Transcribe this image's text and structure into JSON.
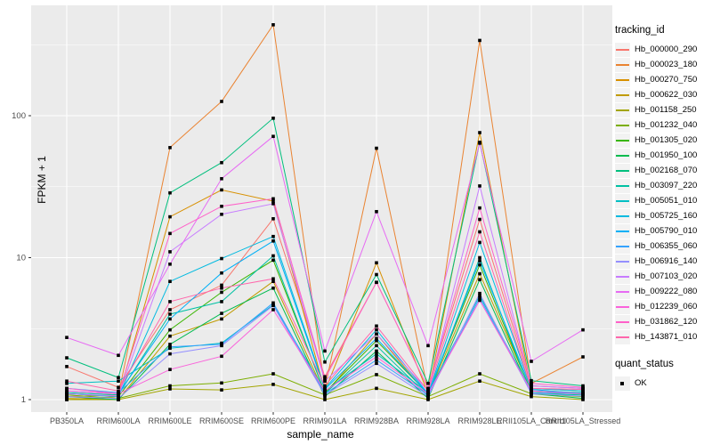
{
  "chart_data": {
    "type": "line",
    "title": "",
    "xlabel": "sample_name",
    "ylabel": "FPKM + 1",
    "y_scale": "log10",
    "y_ticks": [
      1,
      10,
      100
    ],
    "y_minor_ticks": [
      3.162,
      31.62,
      316.2
    ],
    "ylim_log": [
      -0.09,
      2.78
    ],
    "grid": "on",
    "panel_bg": "#EBEBEB",
    "grid_color": "#FFFFFF",
    "point_shape": "black-square",
    "legend_position": "right",
    "categories": [
      "PB350LA",
      "RRIM600LA",
      "RRIM600LE",
      "RRIM600SE",
      "RRIM600PE",
      "RRIM901LA",
      "RRIM928BA",
      "RRIM928LA",
      "RRIM928LE",
      "RRII105LA_Control",
      "RRII105LA_Stressed"
    ],
    "series": [
      {
        "name": "Hb_000000_290",
        "color": "#F8766D",
        "values": [
          1.71,
          1.22,
          4.3,
          6.4,
          18.8,
          1.45,
          6.7,
          1.2,
          18.6,
          1.25,
          1.2
        ]
      },
      {
        "name": "Hb_000023_180",
        "color": "#EA8331",
        "values": [
          1.05,
          1.08,
          59.6,
          126,
          437,
          1.2,
          59,
          1.15,
          339,
          1.3,
          2.0
        ]
      },
      {
        "name": "Hb_000270_750",
        "color": "#D89000",
        "values": [
          1.0,
          1.05,
          19.4,
          30,
          25,
          1.15,
          9.2,
          1.1,
          76,
          1.2,
          1.15
        ]
      },
      {
        "name": "Hb_000622_030",
        "color": "#C09B00",
        "values": [
          1.02,
          1.0,
          2.8,
          3.7,
          6.8,
          1.1,
          2.9,
          1.08,
          7.7,
          1.15,
          1.1
        ]
      },
      {
        "name": "Hb_001158_250",
        "color": "#A3A500",
        "values": [
          1.0,
          1.0,
          1.19,
          1.17,
          1.28,
          1.0,
          1.2,
          1.0,
          1.35,
          1.05,
          1.0
        ]
      },
      {
        "name": "Hb_001232_040",
        "color": "#7CAE00",
        "values": [
          1.08,
          1.02,
          1.25,
          1.31,
          1.52,
          1.08,
          1.5,
          1.05,
          1.52,
          1.1,
          1.05
        ]
      },
      {
        "name": "Hb_001305_020",
        "color": "#39B600",
        "values": [
          1.1,
          1.05,
          3.1,
          5.7,
          9.6,
          1.12,
          2.6,
          1.1,
          8.9,
          1.12,
          1.1
        ]
      },
      {
        "name": "Hb_001950_100",
        "color": "#00BB4E",
        "values": [
          1.05,
          1.0,
          2.45,
          4.05,
          6.1,
          1.05,
          2.2,
          1.02,
          7.0,
          1.1,
          1.02
        ]
      },
      {
        "name": "Hb_002168_070",
        "color": "#00BF7D",
        "values": [
          1.97,
          1.43,
          28.6,
          46.7,
          96,
          1.84,
          7.6,
          1.3,
          65,
          1.36,
          1.25
        ]
      },
      {
        "name": "Hb_003097_220",
        "color": "#00C1A3",
        "values": [
          1.12,
          1.08,
          4.0,
          4.9,
          10.3,
          1.1,
          2.4,
          1.06,
          10.0,
          1.1,
          1.08
        ]
      },
      {
        "name": "Hb_005051_010",
        "color": "#00BFC4",
        "values": [
          1.3,
          1.35,
          2.3,
          2.5,
          4.65,
          1.15,
          2.1,
          1.12,
          5.4,
          1.15,
          1.12
        ]
      },
      {
        "name": "Hb_005725_160",
        "color": "#00BAE0",
        "values": [
          1.1,
          1.05,
          6.8,
          9.85,
          14.1,
          1.2,
          3.1,
          1.1,
          12.8,
          1.2,
          1.15
        ]
      },
      {
        "name": "Hb_005790_010",
        "color": "#00B0F6",
        "values": [
          1.15,
          1.1,
          3.7,
          7.8,
          13.1,
          1.18,
          2.7,
          1.1,
          9.5,
          1.18,
          1.1
        ]
      },
      {
        "name": "Hb_006355_060",
        "color": "#35A2FF",
        "values": [
          1.2,
          1.12,
          2.35,
          2.45,
          4.8,
          1.1,
          1.9,
          1.08,
          5.2,
          1.12,
          1.1
        ]
      },
      {
        "name": "Hb_006916_140",
        "color": "#9590FF",
        "values": [
          1.05,
          1.02,
          2.1,
          2.4,
          4.6,
          1.08,
          1.8,
          1.05,
          5.6,
          1.1,
          1.06
        ]
      },
      {
        "name": "Hb_007103_020",
        "color": "#C77CFF",
        "values": [
          1.1,
          1.06,
          11.0,
          20.2,
          24,
          1.35,
          2.9,
          1.15,
          32,
          1.25,
          1.2
        ]
      },
      {
        "name": "Hb_009222_080",
        "color": "#E76BF3",
        "values": [
          2.74,
          2.05,
          9.0,
          36,
          71.5,
          2.2,
          21.1,
          2.4,
          64,
          1.86,
          3.1
        ]
      },
      {
        "name": "Hb_012239_060",
        "color": "#FA62DB",
        "values": [
          1.15,
          1.1,
          1.63,
          2.02,
          4.3,
          1.15,
          2.0,
          1.1,
          5.0,
          1.15,
          1.1
        ]
      },
      {
        "name": "Hb_031862_120",
        "color": "#FF61C9",
        "values": [
          1.2,
          1.1,
          14.8,
          23,
          26,
          1.4,
          6.7,
          1.2,
          22.4,
          1.3,
          1.22
        ]
      },
      {
        "name": "Hb_143871_010",
        "color": "#FF67AC",
        "values": [
          1.35,
          1.15,
          4.9,
          6.1,
          7.1,
          1.25,
          3.3,
          1.15,
          15.2,
          1.2,
          1.18
        ]
      }
    ]
  },
  "legend": {
    "tracking_title": "tracking_id",
    "quant_title": "quant_status",
    "quant_items": [
      {
        "label": "OK",
        "marker": "black-square"
      }
    ]
  },
  "axes": {
    "x_title": "sample_name",
    "y_title": "FPKM + 1",
    "y_tick_labels": [
      "100",
      "10",
      "1"
    ],
    "text_color": "#4D4D4D"
  }
}
